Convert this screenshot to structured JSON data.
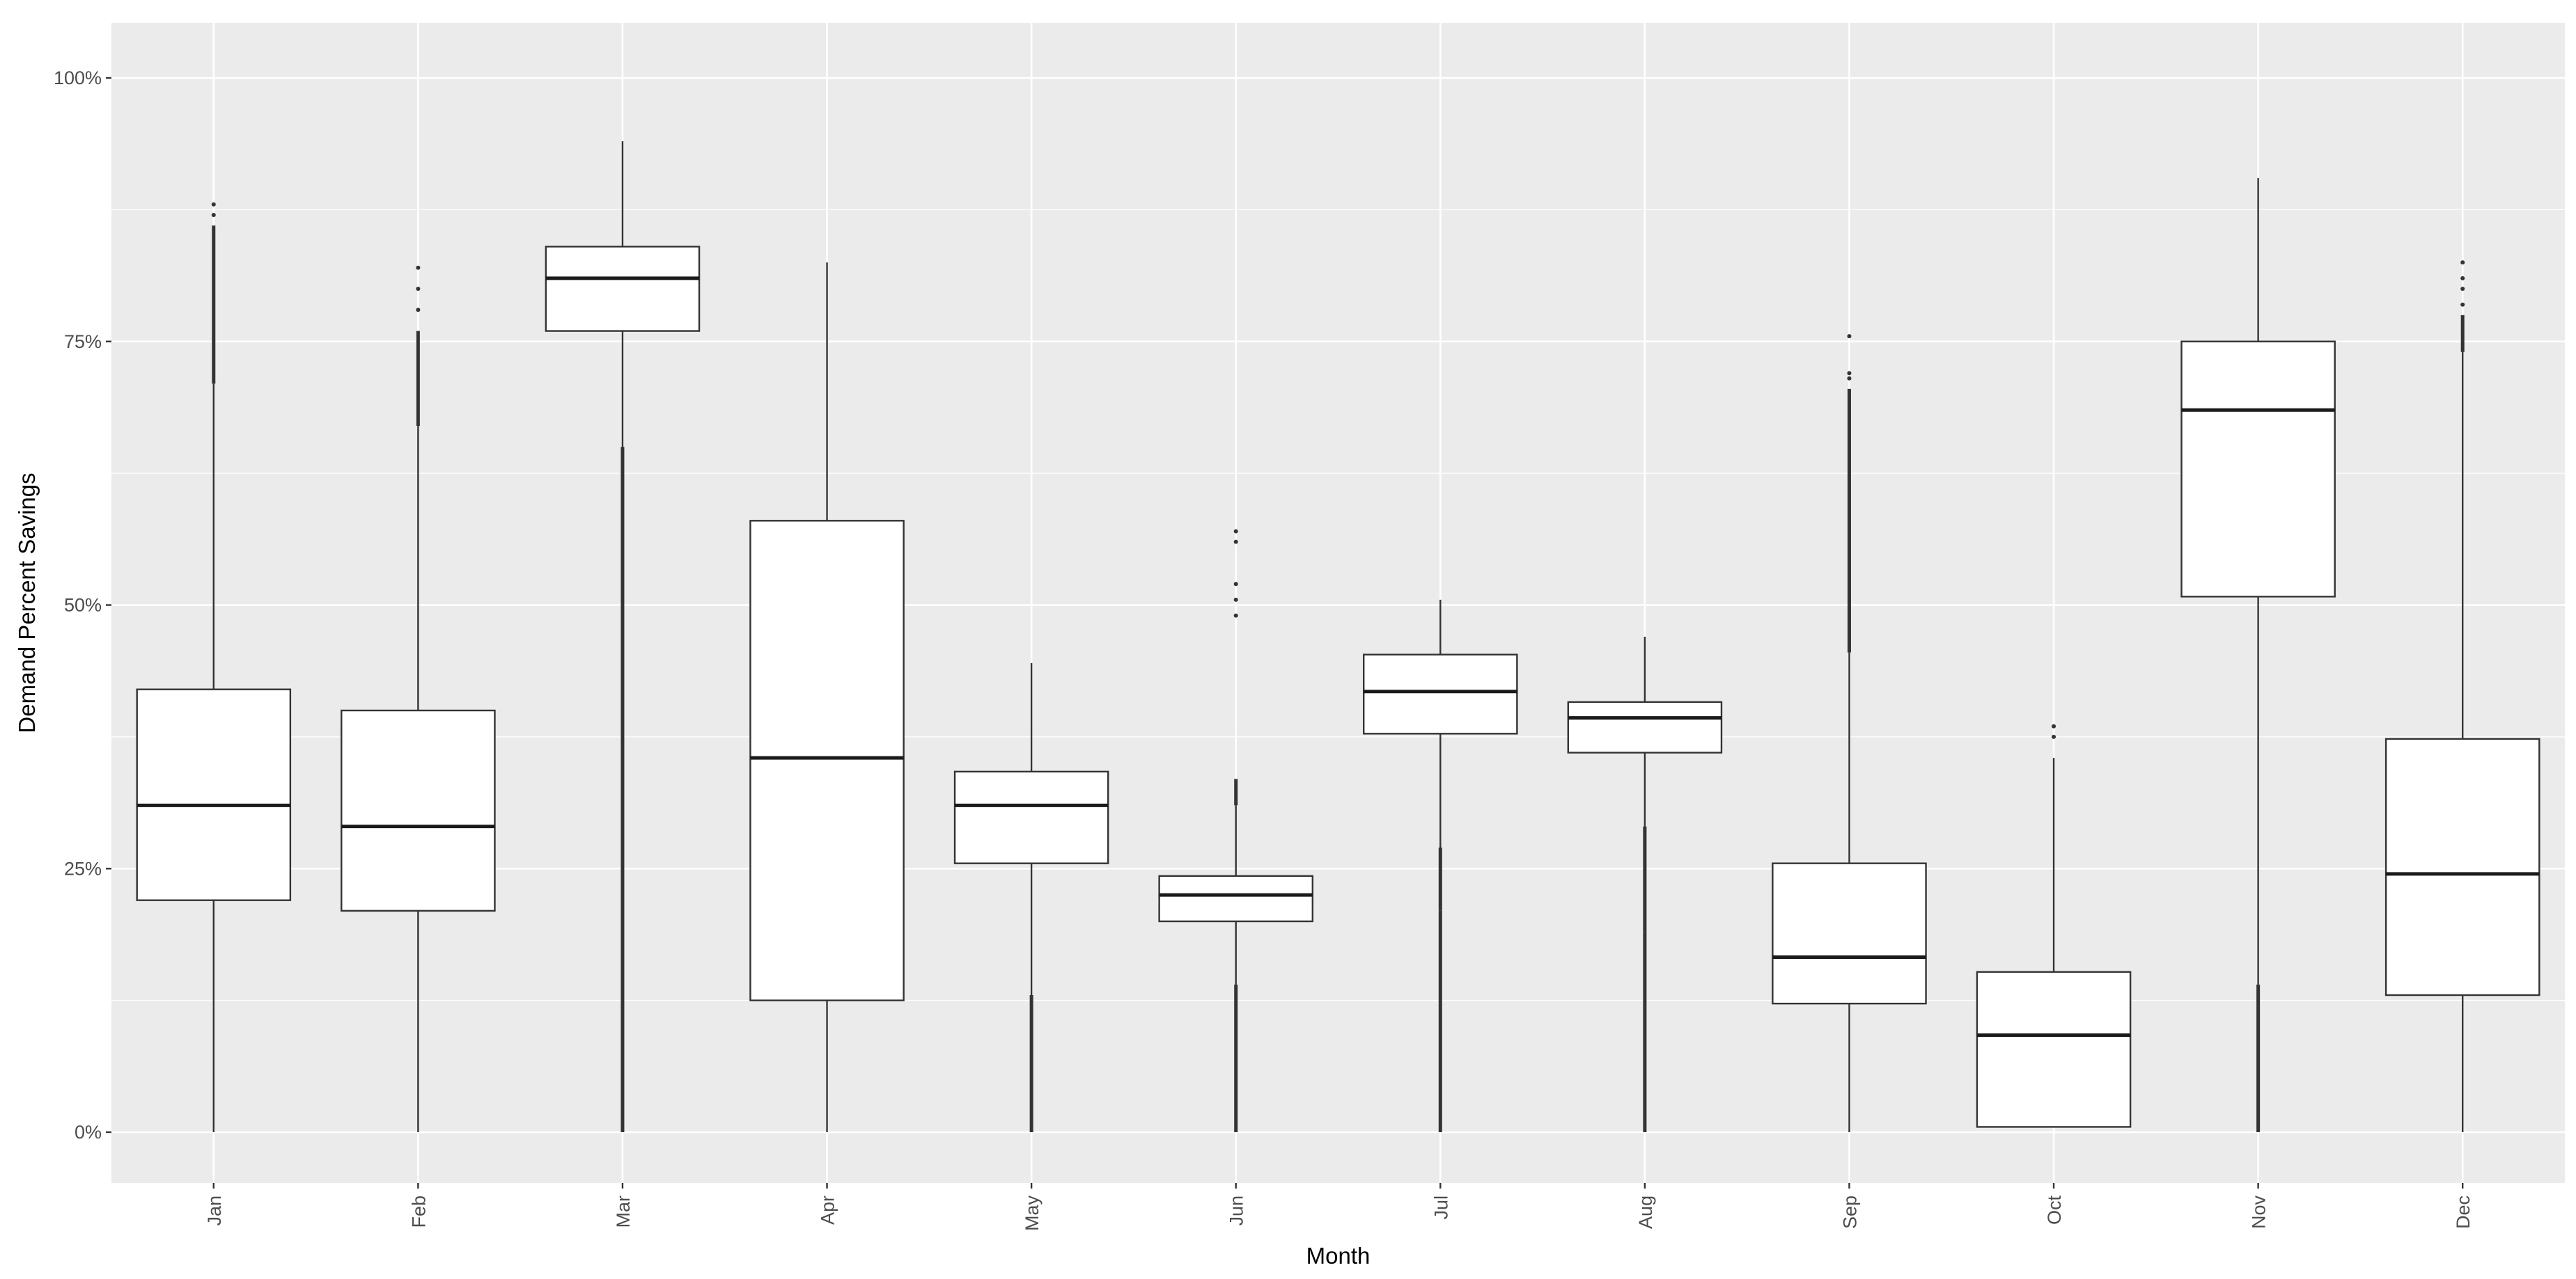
{
  "chart_data": {
    "type": "boxplot",
    "xlabel": "Month",
    "ylabel": "Demand Percent Savings",
    "ylim": [
      -0.05,
      1.05
    ],
    "y_ticks": [
      {
        "value": 0,
        "label": "0%"
      },
      {
        "value": 0.25,
        "label": "25%"
      },
      {
        "value": 0.5,
        "label": "50%"
      },
      {
        "value": 0.75,
        "label": "75%"
      },
      {
        "value": 1.0,
        "label": "100%"
      }
    ],
    "grid": true,
    "background": "#ebebeb",
    "grid_color": "#ffffff",
    "box_fill": "#ffffff",
    "line_color": "#333333",
    "categories": [
      "Jan",
      "Feb",
      "Mar",
      "Apr",
      "May",
      "Jun",
      "Jul",
      "Aug",
      "Sep",
      "Oct",
      "Nov",
      "Dec"
    ],
    "boxes": [
      {
        "month": "Jan",
        "min": 0.0,
        "q1": 0.22,
        "median": 0.31,
        "q3": 0.42,
        "max": 0.71,
        "outliers": [
          [
            0.71,
            0.86
          ],
          0.87,
          0.88
        ]
      },
      {
        "month": "Feb",
        "min": 0.0,
        "q1": 0.21,
        "median": 0.29,
        "q3": 0.4,
        "max": 0.67,
        "outliers": [
          [
            0.67,
            0.76
          ],
          0.78,
          0.8,
          0.82
        ]
      },
      {
        "month": "Mar",
        "min": 0.62,
        "q1": 0.76,
        "median": 0.81,
        "q3": 0.84,
        "max": 0.94,
        "outliers": [
          [
            0.0,
            0.65
          ]
        ]
      },
      {
        "month": "Apr",
        "min": 0.0,
        "q1": 0.125,
        "median": 0.355,
        "q3": 0.58,
        "max": 0.825,
        "outliers": []
      },
      {
        "month": "May",
        "min": 0.13,
        "q1": 0.255,
        "median": 0.31,
        "q3": 0.342,
        "max": 0.445,
        "outliers": [
          [
            0.0,
            0.13
          ]
        ]
      },
      {
        "month": "Jun",
        "min": 0.14,
        "q1": 0.2,
        "median": 0.225,
        "q3": 0.243,
        "max": 0.31,
        "outliers": [
          [
            0.0,
            0.14
          ],
          [
            0.31,
            0.335
          ],
          0.49,
          0.505,
          0.52,
          0.56,
          0.57
        ]
      },
      {
        "month": "Jul",
        "min": 0.27,
        "q1": 0.378,
        "median": 0.418,
        "q3": 0.453,
        "max": 0.505,
        "outliers": [
          [
            0.0,
            0.21
          ],
          [
            0.21,
            0.27
          ]
        ]
      },
      {
        "month": "Aug",
        "min": 0.29,
        "q1": 0.36,
        "median": 0.393,
        "q3": 0.408,
        "max": 0.47,
        "outliers": [
          [
            0.0,
            0.19
          ],
          [
            0.19,
            0.29
          ]
        ]
      },
      {
        "month": "Sep",
        "min": 0.0,
        "q1": 0.122,
        "median": 0.166,
        "q3": 0.255,
        "max": 0.455,
        "outliers": [
          [
            0.455,
            0.705
          ],
          0.715,
          0.72,
          0.755
        ]
      },
      {
        "month": "Oct",
        "min": 0.005,
        "q1": 0.005,
        "median": 0.092,
        "q3": 0.152,
        "max": 0.355,
        "outliers": [
          0.375,
          0.385
        ]
      },
      {
        "month": "Nov",
        "min": 0.14,
        "q1": 0.508,
        "median": 0.685,
        "q3": 0.75,
        "max": 0.905,
        "outliers": [
          [
            0.0,
            0.14
          ]
        ]
      },
      {
        "month": "Dec",
        "min": 0.0,
        "q1": 0.13,
        "median": 0.245,
        "q3": 0.373,
        "max": 0.74,
        "outliers": [
          [
            0.74,
            0.775
          ],
          0.785,
          0.8,
          0.81,
          0.825
        ]
      }
    ]
  }
}
